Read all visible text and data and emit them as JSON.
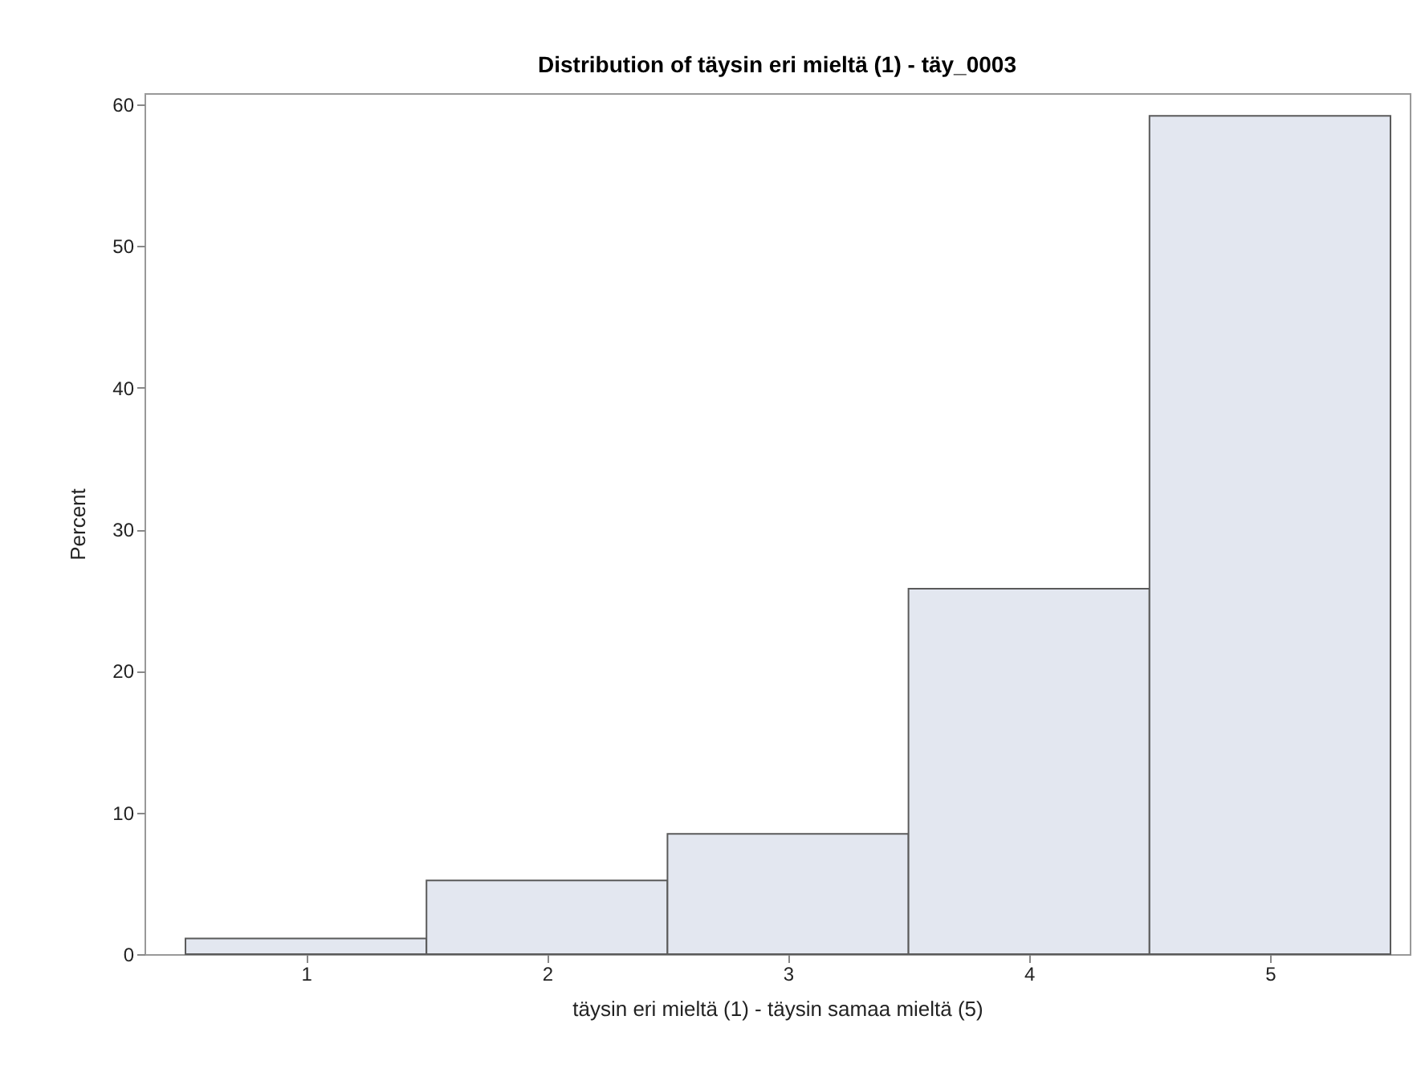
{
  "chart_data": {
    "type": "histogram",
    "title": "Distribution of täysin eri mieltä (1) - täy_0003",
    "xlabel": "täysin eri mieltä (1) - täysin samaa mieltä (5)",
    "ylabel": "Percent",
    "bins": [
      0.5,
      1.5,
      2.5,
      3.5,
      4.5,
      5.5
    ],
    "values": [
      1.1,
      5.2,
      8.5,
      25.8,
      59.2
    ],
    "color": "#e3e7f0",
    "xlim": [
      0.33,
      5.58
    ],
    "xticks": [
      1,
      2,
      3,
      4,
      5
    ],
    "ylim": [
      0,
      60.8
    ],
    "yticks": [
      0,
      10,
      20,
      30,
      40,
      50,
      60
    ],
    "grid": false
  }
}
